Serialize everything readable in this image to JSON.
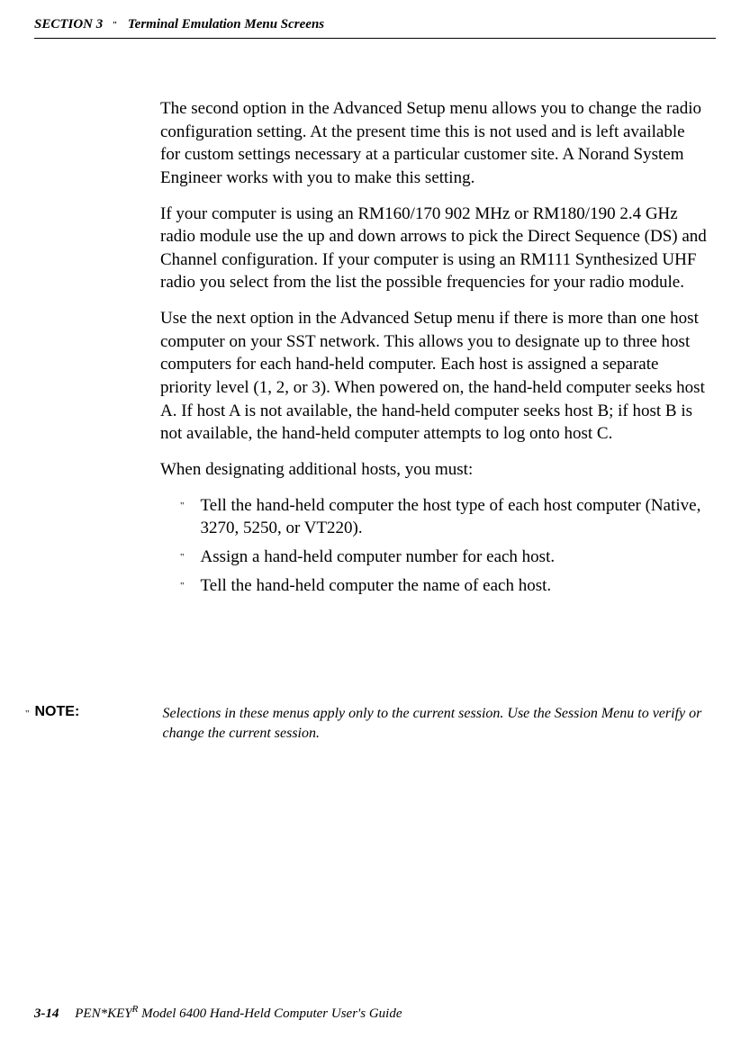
{
  "header": {
    "section_label": "SECTION 3",
    "bullet": "\"",
    "title": "Terminal Emulation Menu Screens"
  },
  "content": {
    "para1": "The second option in the Advanced Setup menu allows you to change the radio configuration setting.  At the present time this is not used and is left available for custom set­tings necessary at a particular customer site.  A Norand System Engineer works with you to make this setting.",
    "para2": "If your computer is using an RM160/170 902 MHz or RM180/190 2.4 GHz radio module use the up and down ar­rows to pick the Direct Sequence (DS) and Channel configu­ration.  If your computer is using an RM111 Synthesized UHF radio you select from the list the possible frequencies for your radio module.",
    "para3": "Use the next option in the Advanced Setup menu if there is more than one host computer on your SST network.  This allows you to designate up to three host computers for each hand-held computer.  Each host is assigned a separate priority level (1, 2, or 3).  When powered on, the hand-held computer seeks host A.  If host A is not available, the hand-held computer seeks host B; if host B is not available, the hand-held computer attempts to log onto host C.",
    "para4": "When designating additional hosts, you must:",
    "list_items": [
      "Tell the hand-held computer the host type of each host computer (Native, 3270, 5250, or VT220).",
      "Assign a hand-held computer number for each host.",
      "Tell the hand-held computer the name of each host."
    ],
    "list_bullet": "\""
  },
  "note": {
    "bullet": "\"",
    "label": "NOTE:",
    "text": "Selections in these menus apply only to the current session.  Use the Session Menu to verify or change the current session."
  },
  "footer": {
    "page_num": "3-14",
    "title_pre": "PEN*KEY",
    "title_sup": "R",
    "title_post": " Model 6400 Hand-Held Computer User's Guide"
  }
}
